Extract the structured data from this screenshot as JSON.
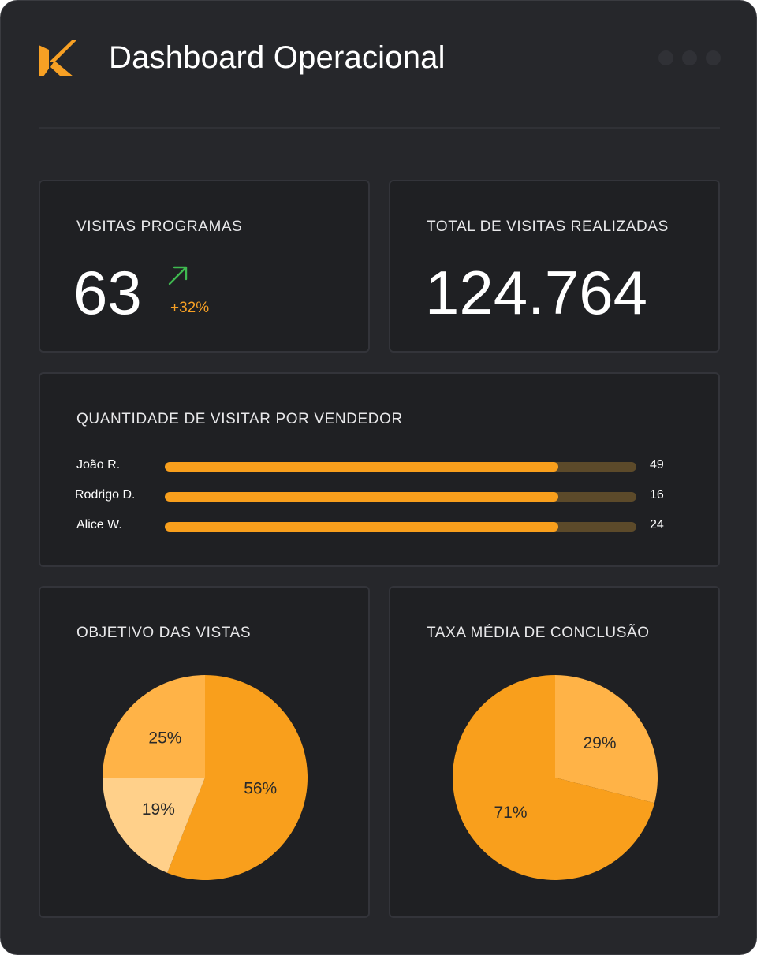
{
  "header": {
    "title": "Dashboard Operacional",
    "logo_color": "#f7a024"
  },
  "kpi_visits": {
    "title": "VISITAS PROGRAMAS",
    "value": "63",
    "delta": "+32%",
    "delta_icon": "trend-up-arrow-icon",
    "delta_icon_color": "#3fb950"
  },
  "kpi_total": {
    "title": "TOTAL DE VISITAS REALIZADAS",
    "value": "124.764"
  },
  "sellers": {
    "title": "QUANTIDADE DE VISITAR POR VENDEDOR",
    "rows": [
      {
        "name": "João R.",
        "value": "49",
        "fill": 0.835
      },
      {
        "name": "Rodrigo D.",
        "value": "16",
        "fill": 0.835
      },
      {
        "name": "Alice W.",
        "value": "24",
        "fill": 0.835
      }
    ],
    "bar_color": "#f99f1c",
    "track_color": "#5c4a2a"
  },
  "chart_data": [
    {
      "type": "pie",
      "title": "OBJETIVO DAS VISTAS",
      "labels": [
        "56%",
        "19%",
        "25%"
      ],
      "values": [
        56,
        19,
        25
      ],
      "colors": [
        "#f99f1c",
        "#ffd08a",
        "#ffb347"
      ]
    },
    {
      "type": "pie",
      "title": "TAXA MÉDIA DE CONCLUSÃO",
      "labels": [
        "29%",
        "71%"
      ],
      "values": [
        29,
        71
      ],
      "colors": [
        "#ffb347",
        "#f99f1c"
      ]
    }
  ]
}
